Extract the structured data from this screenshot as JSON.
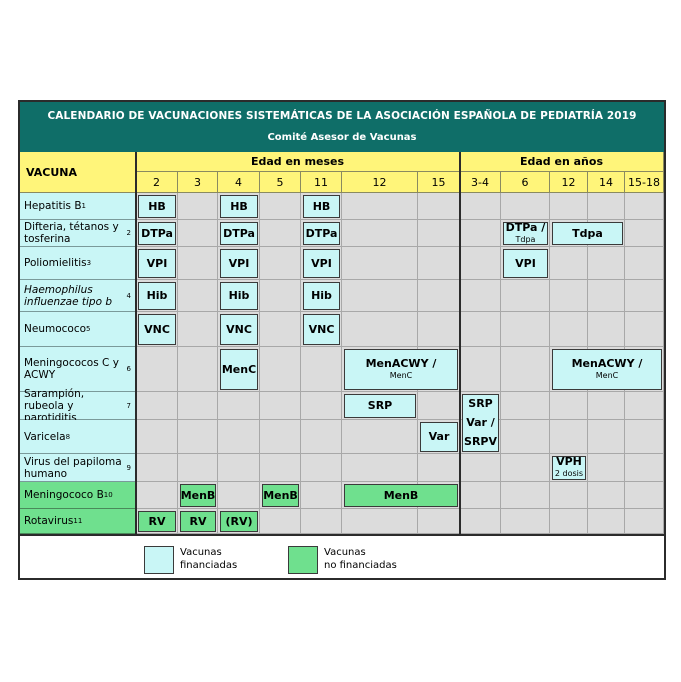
{
  "header": {
    "title": "CALENDARIO DE VACUNACIONES SISTEMÁTICAS DE LA ASOCIACIÓN ESPAÑOLA DE PEDIATRÍA 2019",
    "subtitle": "Comité Asesor de Vacunas"
  },
  "table": {
    "vaccine_header": "VACUNA",
    "months_header": "Edad en meses",
    "years_header": "Edad en años",
    "month_ages": [
      "2",
      "3",
      "4",
      "5",
      "11",
      "12",
      "15"
    ],
    "year_ages": [
      "3-4",
      "6",
      "12",
      "14",
      "15-18"
    ],
    "rows": [
      {
        "label": "Hepatitis B",
        "sup": "1",
        "type": "financed"
      },
      {
        "label": "Difteria, tétanos y tosferina",
        "sup": "2",
        "type": "financed"
      },
      {
        "label": "Poliomielitis",
        "sup": "3",
        "type": "financed"
      },
      {
        "label": "Haemophilus influenzae tipo b",
        "sup": "4",
        "type": "financed"
      },
      {
        "label": "Neumococo",
        "sup": "5",
        "type": "financed"
      },
      {
        "label": "Meningococos C y ACWY",
        "sup": "6",
        "type": "financed"
      },
      {
        "label": "Sarampión, rubeola y parotiditis",
        "sup": "7",
        "type": "financed"
      },
      {
        "label": "Varicela",
        "sup": "8",
        "type": "financed"
      },
      {
        "label": "Virus del papiloma humano",
        "sup": "9",
        "type": "financed"
      },
      {
        "label": "Meningococo B",
        "sup": "10",
        "type": "not_financed"
      },
      {
        "label": "Rotavirus",
        "sup": "11",
        "type": "not_financed"
      }
    ],
    "doses": [
      {
        "text": "HB",
        "sub": "",
        "type": "financed"
      },
      {
        "text": "HB",
        "sub": "",
        "type": "financed"
      },
      {
        "text": "HB",
        "sub": "",
        "type": "financed"
      },
      {
        "text": "DTPa",
        "sub": "",
        "type": "financed"
      },
      {
        "text": "DTPa",
        "sub": "",
        "type": "financed"
      },
      {
        "text": "DTPa",
        "sub": "",
        "type": "financed"
      },
      {
        "text": "DTPa /",
        "sub": "Tdpa",
        "type": "financed"
      },
      {
        "text": "Tdpa",
        "sub": "",
        "type": "financed"
      },
      {
        "text": "VPI",
        "sub": "",
        "type": "financed"
      },
      {
        "text": "VPI",
        "sub": "",
        "type": "financed"
      },
      {
        "text": "VPI",
        "sub": "",
        "type": "financed"
      },
      {
        "text": "VPI",
        "sub": "",
        "type": "financed"
      },
      {
        "text": "Hib",
        "sub": "",
        "type": "financed"
      },
      {
        "text": "Hib",
        "sub": "",
        "type": "financed"
      },
      {
        "text": "Hib",
        "sub": "",
        "type": "financed"
      },
      {
        "text": "VNC",
        "sub": "",
        "type": "financed"
      },
      {
        "text": "VNC",
        "sub": "",
        "type": "financed"
      },
      {
        "text": "VNC",
        "sub": "",
        "type": "financed"
      },
      {
        "text": "MenC",
        "sub": "",
        "type": "financed"
      },
      {
        "text": "MenACWY /",
        "sub": "MenC",
        "type": "financed"
      },
      {
        "text": "MenACWY /",
        "sub": "MenC",
        "type": "financed"
      },
      {
        "text": "SRP",
        "sub": "",
        "type": "financed"
      },
      {
        "text": "SRP",
        "sub": "",
        "type": "financed"
      },
      {
        "text": "Var /",
        "sub": "",
        "type": "financed"
      },
      {
        "text": "SRPV",
        "sub": "",
        "type": "financed"
      },
      {
        "text": "Var",
        "sub": "",
        "type": "financed"
      },
      {
        "text": "VPH",
        "sub": "2 dosis",
        "type": "financed"
      },
      {
        "text": "MenB",
        "sub": "",
        "type": "not_financed"
      },
      {
        "text": "MenB",
        "sub": "",
        "type": "not_financed"
      },
      {
        "text": "MenB",
        "sub": "",
        "type": "not_financed"
      },
      {
        "text": "RV",
        "sub": "",
        "type": "not_financed"
      },
      {
        "text": "RV",
        "sub": "",
        "type": "not_financed"
      },
      {
        "text": "(RV)",
        "sub": "",
        "type": "not_financed"
      }
    ]
  },
  "legend": {
    "financed": "Vacunas financiadas",
    "financed_line1": "Vacunas",
    "financed_line2": "financiadas",
    "not_financed_line1": "Vacunas",
    "not_financed_line2": "no financiadas",
    "colors": {
      "financed": "#c9f6f6",
      "not_financed": "#6fe08e"
    }
  }
}
